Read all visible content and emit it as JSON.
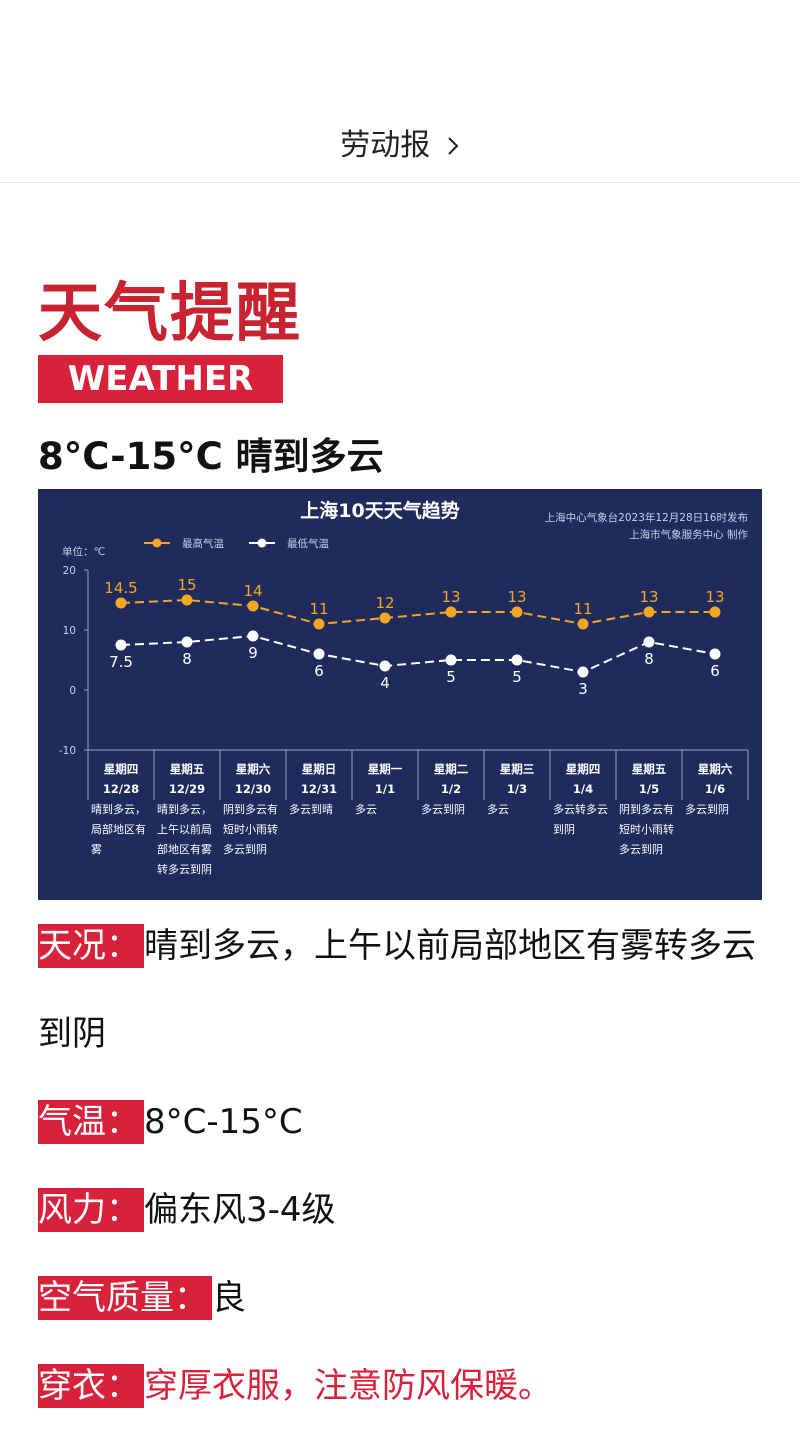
{
  "header": {
    "title": "劳动报"
  },
  "heading": "天气提醒",
  "badge": "WEATHER",
  "summary": "8°C-15°C 晴到多云",
  "chart_data": {
    "type": "line",
    "title": "上海10天天气趋势",
    "source": [
      "上海中心气象台2023年12月28日16时发布",
      "上海市气象服务中心 制作"
    ],
    "unit": "单位：℃",
    "categories": [
      "星期四",
      "星期五",
      "星期六",
      "星期日",
      "星期一",
      "星期二",
      "星期三",
      "星期四",
      "星期五",
      "星期六"
    ],
    "dates": [
      "12/28",
      "12/29",
      "12/30",
      "12/31",
      "1/1",
      "1/2",
      "1/3",
      "1/4",
      "1/5",
      "1/6"
    ],
    "descriptions": [
      "晴到多云，局部地区有雾",
      "晴到多云，上午以前局部地区有雾转多云到阴",
      "阴到多云有短时小雨转多云到阴",
      "多云到晴",
      "多云",
      "多云到阴",
      "多云",
      "多云转多云到阴",
      "阴到多云有短时小雨转多云到阴",
      "多云到阴"
    ],
    "series": [
      {
        "name": "最高气温",
        "color": "#f5a623",
        "values": [
          14.5,
          15,
          14,
          11,
          12,
          13,
          13,
          11,
          13,
          13
        ]
      },
      {
        "name": "最低气温",
        "color": "#ffffff",
        "values": [
          7.5,
          8,
          9,
          6,
          4,
          5,
          5,
          3,
          8,
          6
        ]
      }
    ],
    "ylim": [
      -10,
      20
    ],
    "yticks": [
      -10,
      0,
      10,
      20
    ]
  },
  "details": [
    {
      "label": "天况：",
      "text": "晴到多云，上午以前局部地区有雾转多云到阴"
    },
    {
      "label": "气温：",
      "text": "8°C-15°C"
    },
    {
      "label": "风力：",
      "text": "偏东风3-4级"
    },
    {
      "label": "空气质量：",
      "text": "良"
    },
    {
      "label": "穿衣：",
      "text": "穿厚衣服，注意防风保暖。"
    }
  ]
}
